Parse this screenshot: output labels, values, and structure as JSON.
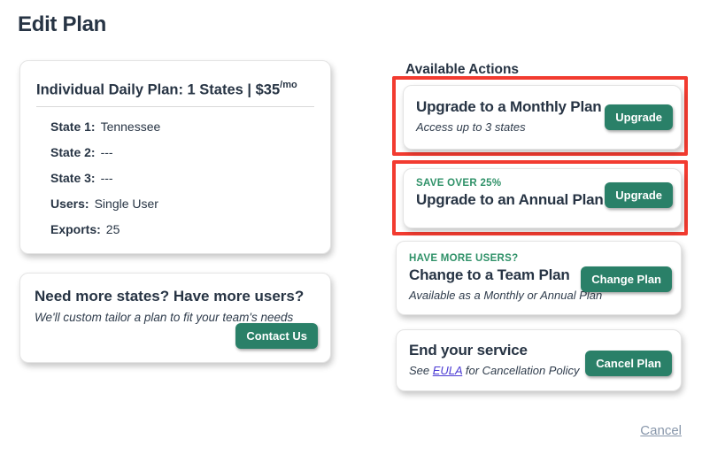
{
  "page": {
    "title": "Edit Plan"
  },
  "plan_card": {
    "title_main": "Individual Daily Plan: 1 States | $35",
    "title_suffix": "/mo",
    "details": [
      {
        "label": "State 1:",
        "value": "Tennessee"
      },
      {
        "label": "State 2:",
        "value": "---"
      },
      {
        "label": "State 3:",
        "value": "---"
      },
      {
        "label": "Users:",
        "value": "Single User"
      },
      {
        "label": "Exports:",
        "value": "25"
      }
    ]
  },
  "contact_card": {
    "heading": "Need more states? Have more users?",
    "subtext": "We'll custom tailor a plan to fit your team's needs",
    "button_label": "Contact Us"
  },
  "actions": {
    "heading": "Available Actions",
    "items": [
      {
        "title": "Upgrade to a Monthly Plan",
        "subtitle": "Access up to 3 states",
        "button": "Upgrade",
        "highlighted": true
      },
      {
        "kicker": "SAVE OVER 25%",
        "title": "Upgrade to an Annual Plan",
        "button": "Upgrade",
        "highlighted": true
      },
      {
        "kicker": "HAVE MORE USERS?",
        "title": "Change to a Team Plan",
        "subtitle": "Available as a Monthly or Annual Plan",
        "button": "Change Plan",
        "highlighted": false
      },
      {
        "title": "End your service",
        "subtitle_prefix": "See ",
        "subtitle_link": "EULA",
        "subtitle_suffix": " for Cancellation Policy",
        "button": "Cancel Plan",
        "highlighted": false
      }
    ]
  },
  "footer": {
    "cancel_label": "Cancel"
  },
  "colors": {
    "accent_green": "#2a8068",
    "kicker_green": "#2f9168",
    "highlight_red": "#f23b30",
    "text_navy": "#273444",
    "subtext_navy": "#2f3c4c",
    "link_purple": "#4b3bd4",
    "cancel_link": "#8796aa",
    "card_border": "#e4e4e4",
    "divider": "#d9d9d9"
  }
}
